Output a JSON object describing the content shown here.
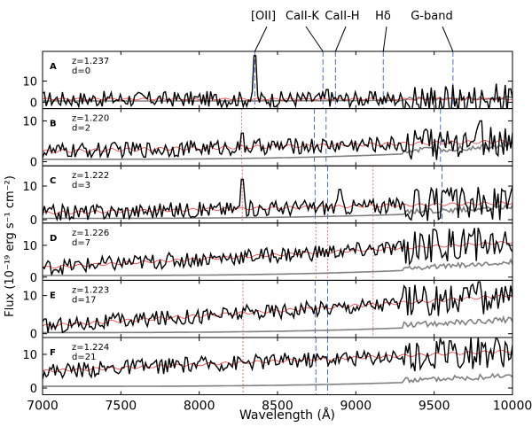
{
  "chart_data": {
    "type": "line",
    "xlabel": "Wavelength (Å)",
    "ylabel": "Flux (10⁻¹⁹ erg s⁻¹ cm⁻²)",
    "xlim": [
      7000,
      10000
    ],
    "xticks": [
      7000,
      7500,
      8000,
      8500,
      9000,
      9500,
      10000
    ],
    "line_labels": [
      {
        "label": "[OII]",
        "wavelength": 8355
      },
      {
        "label": "CaII-K",
        "wavelength": 8790
      },
      {
        "label": "CaII-H",
        "wavelength": 8870
      },
      {
        "label": "Hδ",
        "wavelength": 9175
      },
      {
        "label": "G-band",
        "wavelength": 9620
      }
    ],
    "colors": {
      "spectrum": "#000000",
      "model": "#ff3030",
      "error": "#808080",
      "marker_blue": "#4a6bd8",
      "marker_red": "#e07070"
    },
    "panels": [
      {
        "id": "A",
        "z": "z=1.237",
        "d": "d=0",
        "ylim": [
          -3,
          24
        ],
        "yticks": [
          0,
          10
        ],
        "markers": [
          {
            "w": 8355,
            "color": "blue"
          },
          {
            "w": 8790,
            "color": "blue"
          },
          {
            "w": 8870,
            "color": "blue"
          },
          {
            "w": 9175,
            "color": "blue"
          },
          {
            "w": 9620,
            "color": "blue"
          }
        ],
        "model_level": [
          1.5,
          1.5
        ],
        "error_level": [
          0.6,
          1.2
        ],
        "feature": [
          {
            "w": 8355,
            "h": 22
          },
          {
            "w": 8820,
            "h": 6
          }
        ]
      },
      {
        "id": "B",
        "z": "z=1.220",
        "d": "d=2",
        "ylim": [
          -1,
          13
        ],
        "yticks": [
          0,
          10
        ],
        "markers": [
          {
            "w": 8270,
            "color": "red"
          },
          {
            "w": 8735,
            "color": "blue"
          },
          {
            "w": 8810,
            "color": "blue"
          },
          {
            "w": 9540,
            "color": "blue"
          }
        ],
        "model_level": [
          2.5,
          5
        ],
        "error_level": [
          0.6,
          3.5
        ],
        "feature": [
          {
            "w": 8270,
            "h": 7
          },
          {
            "w": 9800,
            "h": 10
          }
        ]
      },
      {
        "id": "C",
        "z": "z=1.222",
        "d": "d=3",
        "ylim": [
          -1,
          16
        ],
        "yticks": [
          0,
          10
        ],
        "markers": [
          {
            "w": 8275,
            "color": "red"
          },
          {
            "w": 8740,
            "color": "blue"
          },
          {
            "w": 8820,
            "color": "blue"
          },
          {
            "w": 9110,
            "color": "red"
          },
          {
            "w": 9550,
            "color": "blue"
          }
        ],
        "model_level": [
          2,
          5
        ],
        "error_level": [
          0.4,
          3
        ],
        "feature": [
          {
            "w": 8275,
            "h": 12
          },
          {
            "w": 8900,
            "h": 9
          }
        ]
      },
      {
        "id": "D",
        "z": "z=1.226",
        "d": "d=7",
        "ylim": [
          -1,
          17
        ],
        "yticks": [
          0,
          10
        ],
        "markers": [
          {
            "w": 8745,
            "color": "red"
          },
          {
            "w": 8820,
            "color": "red"
          },
          {
            "w": 9110,
            "color": "red"
          }
        ],
        "model_level": [
          3,
          11
        ],
        "error_level": [
          0.5,
          4
        ],
        "feature": [
          {
            "w": 9500,
            "h": 15
          }
        ]
      },
      {
        "id": "E",
        "z": "z=1.223",
        "d": "d=17",
        "ylim": [
          -1,
          14
        ],
        "yticks": [
          0,
          10
        ],
        "markers": [
          {
            "w": 8280,
            "color": "red"
          },
          {
            "w": 8740,
            "color": "blue"
          },
          {
            "w": 8820,
            "color": "blue"
          },
          {
            "w": 9110,
            "color": "red"
          }
        ],
        "model_level": [
          2,
          10
        ],
        "error_level": [
          0.3,
          3
        ],
        "feature": [
          {
            "w": 9700,
            "h": 12
          }
        ]
      },
      {
        "id": "F",
        "z": "z=1.224",
        "d": "d=21",
        "ylim": [
          -2,
          15
        ],
        "yticks": [
          0,
          10
        ],
        "markers": [
          {
            "w": 8280,
            "color": "red"
          },
          {
            "w": 8745,
            "color": "blue"
          },
          {
            "w": 8820,
            "color": "blue"
          }
        ],
        "model_level": [
          5,
          11
        ],
        "error_level": [
          0.5,
          3
        ],
        "feature": [
          {
            "w": 9600,
            "h": 14
          }
        ]
      }
    ]
  }
}
